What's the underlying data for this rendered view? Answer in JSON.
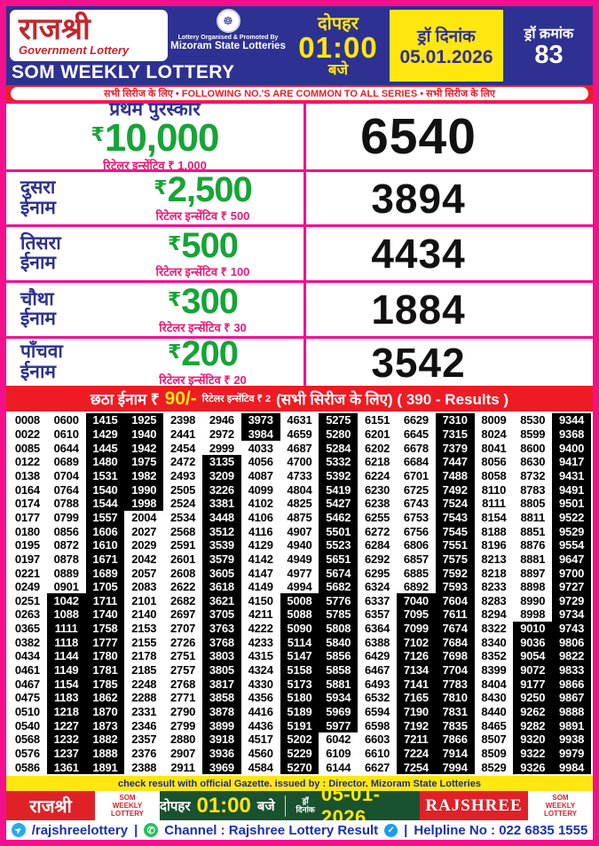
{
  "strings": {
    "rupee": "₹"
  },
  "colors": {
    "header_blue": "#2e3192",
    "banner_red": "#ed1c24",
    "accent_yellow": "#ffe70f",
    "frame_pink": "#f2108d",
    "amount_green": "#16a437",
    "incentive_pink": "#ec1a76",
    "footer_green": "#19522f",
    "contact_blue": "#1b2fb3",
    "result_dark_cell": "#000000"
  },
  "header": {
    "logo_title": "राजश्री",
    "logo_subtitle": "Government Lottery",
    "weekly_title": "SOM WEEKLY LOTTERY",
    "emblem": "seal-of-mizoram",
    "organiser_line1": "Lottery Organised & Promoted By",
    "organiser_line2": "Mizoram State Lotteries",
    "time_prefix": "दोपहर",
    "time_value": "01:00",
    "time_suffix": "बजे",
    "draw_date_label": "ड्रॉ दिनांक",
    "draw_date": "05.01.2026",
    "draw_no_label": "ड्रॉ क्रमांक",
    "draw_no": "83"
  },
  "series_banner": "सभी सिरीज के लिए  •  FOLLOWING NO.'S ARE COMMON TO ALL SERIES  •  सभी सिरीज के लिए",
  "prizes": [
    {
      "label_line1": "प्रथम पुरस्कार",
      "label_line2": "",
      "amount": "10,000",
      "incentive": "रिटेलर इन्सेंटिव ₹ 1,000",
      "number": "6540"
    },
    {
      "label_line1": "दुसरा",
      "label_line2": "ईनाम",
      "amount": "2,500",
      "incentive": "रिटेलर इन्सेंटिव ₹ 500",
      "number": "3894"
    },
    {
      "label_line1": "तिसरा",
      "label_line2": "ईनाम",
      "amount": "500",
      "incentive": "रिटेलर इन्सेंटिव ₹ 100",
      "number": "4434"
    },
    {
      "label_line1": "चौथा",
      "label_line2": "ईनाम",
      "amount": "300",
      "incentive": "रिटेलर इन्सेंटिव ₹ 30",
      "number": "1884"
    },
    {
      "label_line1": "पाँचवा",
      "label_line2": "ईनाम",
      "amount": "200",
      "incentive": "रिटेलर इन्सेंटिव ₹ 20",
      "number": "3542"
    }
  ],
  "sixth_prize": {
    "part1": "छठा ईनाम ₹",
    "part2": "90/-",
    "part3": "रिटेलर इन्सेंटिव ₹ 2",
    "part4": "(सभी सिरीज के लिए) ( 390 - Results )"
  },
  "results": {
    "highlight_rule": "numbers with odd leading digit are shown white-on-black",
    "rows": [
      [
        "0008",
        "0600",
        "1415",
        "1925",
        "2398",
        "2946",
        "3973",
        "4631",
        "5275",
        "6151",
        "6629",
        "7310",
        "8009",
        "8530",
        "9344"
      ],
      [
        "0022",
        "0610",
        "1429",
        "1940",
        "2441",
        "2972",
        "3984",
        "4659",
        "5280",
        "6201",
        "6645",
        "7315",
        "8024",
        "8599",
        "9368"
      ],
      [
        "0085",
        "0644",
        "1445",
        "1942",
        "2454",
        "2999",
        "4033",
        "4687",
        "5284",
        "6202",
        "6678",
        "7379",
        "8041",
        "8600",
        "9400"
      ],
      [
        "0122",
        "0689",
        "1480",
        "1975",
        "2472",
        "3135",
        "4056",
        "4700",
        "5332",
        "6218",
        "6684",
        "7447",
        "8056",
        "8630",
        "9417"
      ],
      [
        "0138",
        "0704",
        "1531",
        "1982",
        "2493",
        "3209",
        "4087",
        "4733",
        "5392",
        "6224",
        "6701",
        "7488",
        "8058",
        "8732",
        "9431"
      ],
      [
        "0164",
        "0764",
        "1540",
        "1990",
        "2505",
        "3226",
        "4099",
        "4804",
        "5419",
        "6230",
        "6725",
        "7492",
        "8110",
        "8783",
        "9491"
      ],
      [
        "0174",
        "0788",
        "1544",
        "1998",
        "2524",
        "3381",
        "4102",
        "4825",
        "5427",
        "6238",
        "6743",
        "7524",
        "8111",
        "8805",
        "9501"
      ],
      [
        "0177",
        "0799",
        "1557",
        "2004",
        "2534",
        "3448",
        "4106",
        "4875",
        "5462",
        "6255",
        "6753",
        "7543",
        "8154",
        "8811",
        "9522"
      ],
      [
        "0180",
        "0856",
        "1606",
        "2027",
        "2568",
        "3512",
        "4116",
        "4907",
        "5501",
        "6272",
        "6756",
        "7545",
        "8188",
        "8851",
        "9529"
      ],
      [
        "0195",
        "0872",
        "1610",
        "2029",
        "2591",
        "3539",
        "4129",
        "4940",
        "5523",
        "6284",
        "6806",
        "7551",
        "8196",
        "8876",
        "9554"
      ],
      [
        "0197",
        "0878",
        "1671",
        "2042",
        "2601",
        "3579",
        "4142",
        "4949",
        "5651",
        "6292",
        "6857",
        "7575",
        "8213",
        "8881",
        "9647"
      ],
      [
        "0221",
        "0889",
        "1689",
        "2057",
        "2608",
        "3605",
        "4147",
        "4977",
        "5674",
        "6295",
        "6885",
        "7592",
        "8218",
        "8897",
        "9700"
      ],
      [
        "0249",
        "0901",
        "1705",
        "2083",
        "2622",
        "3618",
        "4149",
        "4994",
        "5682",
        "6324",
        "6892",
        "7593",
        "8233",
        "8898",
        "9727"
      ],
      [
        "0251",
        "1042",
        "1711",
        "2101",
        "2682",
        "3621",
        "4150",
        "5008",
        "5776",
        "6337",
        "7040",
        "7604",
        "8283",
        "8990",
        "9729"
      ],
      [
        "0263",
        "1088",
        "1740",
        "2140",
        "2697",
        "3705",
        "4211",
        "5088",
        "5785",
        "6357",
        "7095",
        "7611",
        "8294",
        "8998",
        "9734"
      ],
      [
        "0365",
        "1111",
        "1758",
        "2153",
        "2707",
        "3763",
        "4222",
        "5090",
        "5808",
        "6364",
        "7099",
        "7674",
        "8322",
        "9010",
        "9743"
      ],
      [
        "0382",
        "1118",
        "1777",
        "2155",
        "2726",
        "3768",
        "4233",
        "5114",
        "5840",
        "6388",
        "7102",
        "7684",
        "8340",
        "9036",
        "9806"
      ],
      [
        "0434",
        "1144",
        "1780",
        "2178",
        "2751",
        "3803",
        "4315",
        "5147",
        "5856",
        "6429",
        "7126",
        "7698",
        "8352",
        "9054",
        "9822"
      ],
      [
        "0461",
        "1149",
        "1781",
        "2185",
        "2757",
        "3805",
        "4324",
        "5158",
        "5858",
        "6467",
        "7134",
        "7704",
        "8399",
        "9072",
        "9833"
      ],
      [
        "0467",
        "1154",
        "1785",
        "2248",
        "2768",
        "3817",
        "4330",
        "5173",
        "5881",
        "6493",
        "7141",
        "7783",
        "8404",
        "9177",
        "9866"
      ],
      [
        "0475",
        "1183",
        "1862",
        "2288",
        "2771",
        "3858",
        "4356",
        "5180",
        "5934",
        "6532",
        "7165",
        "7810",
        "8430",
        "9250",
        "9867"
      ],
      [
        "0510",
        "1218",
        "1870",
        "2331",
        "2790",
        "3878",
        "4416",
        "5189",
        "5969",
        "6594",
        "7190",
        "7831",
        "8440",
        "9262",
        "9888"
      ],
      [
        "0540",
        "1227",
        "1873",
        "2346",
        "2799",
        "3899",
        "4436",
        "5191",
        "5977",
        "6598",
        "7192",
        "7835",
        "8465",
        "9282",
        "9891"
      ],
      [
        "0568",
        "1232",
        "1882",
        "2357",
        "2880",
        "3918",
        "4517",
        "5202",
        "6042",
        "6603",
        "7211",
        "7866",
        "8507",
        "9320",
        "9938"
      ],
      [
        "0576",
        "1237",
        "1888",
        "2376",
        "2907",
        "3936",
        "4560",
        "5229",
        "6109",
        "6610",
        "7224",
        "7914",
        "8509",
        "9322",
        "9979"
      ],
      [
        "0586",
        "1361",
        "1891",
        "2388",
        "2911",
        "3969",
        "4584",
        "5270",
        "6144",
        "6627",
        "7254",
        "7994",
        "8529",
        "9326",
        "9984"
      ]
    ]
  },
  "footer": {
    "gazette": "check result with official Gazette. issued by : Director, Mizoram State Lotteries",
    "logo": "राजश्री",
    "som_line1": "SOM",
    "som_line2": "WEEKLY",
    "som_line3": "LOTTERY",
    "time_prefix": "दोपहर",
    "time": "01:00",
    "time_suffix": "बजे",
    "date_label_line1": "ड्रॉ",
    "date_label_line2": "दिनांक",
    "date": "05-01-2026",
    "brand": "RAJSHREE",
    "contact": {
      "telegram_handle": "/rajshreelottery",
      "divider": "|",
      "channel": "Channel : Rajshree Lottery Result",
      "helpline": "Helpline No : 022 6835 1555"
    }
  }
}
